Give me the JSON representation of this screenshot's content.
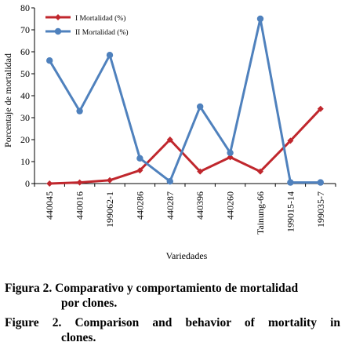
{
  "chart_data": {
    "type": "line",
    "categories": [
      "440045",
      "440016",
      "199062-1",
      "440286",
      "440287",
      "440396",
      "440260",
      "Tainung-66",
      "199015-14",
      "199035-7"
    ],
    "series": [
      {
        "name": "I Mortalidad (%)",
        "color": "#c0272d",
        "marker": "diamond",
        "values": [
          0,
          0.5,
          1.5,
          6,
          20,
          5.5,
          12,
          5.5,
          19.5,
          34
        ]
      },
      {
        "name": "II Mortalidad (%)",
        "color": "#4f81bd",
        "marker": "circle",
        "values": [
          56,
          33,
          58.5,
          11.5,
          1,
          35,
          14,
          75,
          0.5,
          0.5
        ]
      }
    ],
    "ylim": [
      0,
      80
    ],
    "yticks": [
      "0",
      "10",
      "20",
      "30",
      "40",
      "50",
      "60",
      "70",
      "80"
    ],
    "ylabel": "Porcentaje de mortalidad",
    "xlabel": "Variedades",
    "legend_position": "top-left",
    "grid": false
  },
  "caption": {
    "es_line1": "Figura 2. Comparativo y comportamiento de mortalidad",
    "es_line2": "por clones.",
    "en_line1": "Figure 2. Comparison and behavior of mortality in",
    "en_line2": "clones."
  }
}
